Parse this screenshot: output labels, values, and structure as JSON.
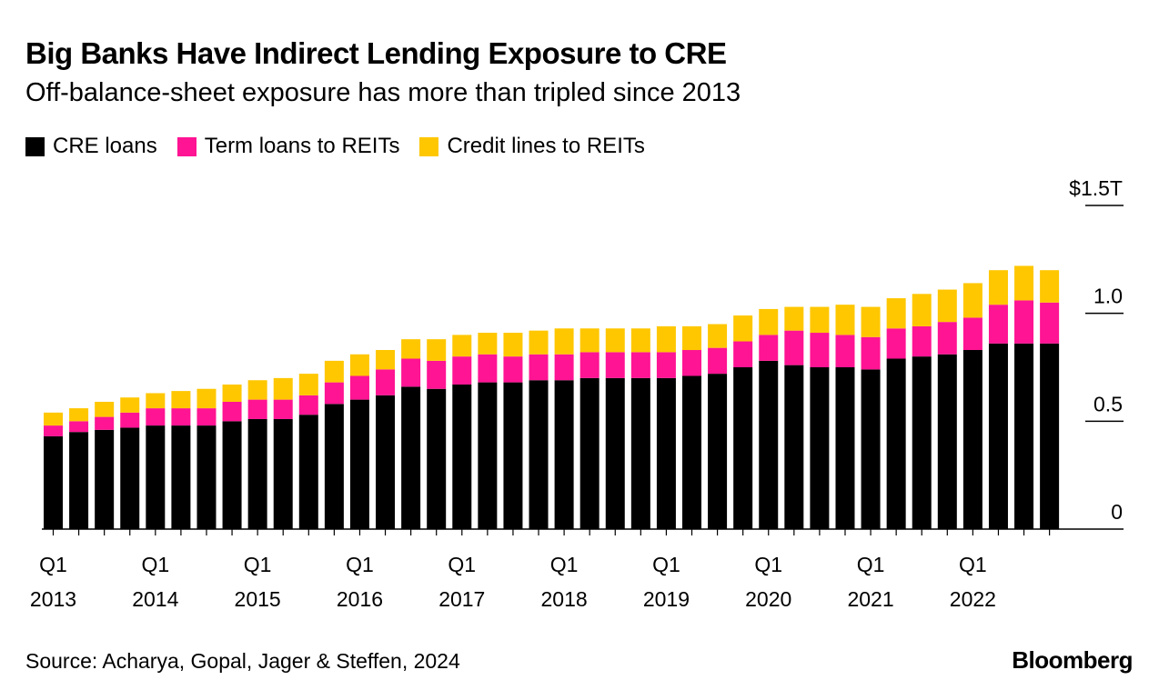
{
  "header": {
    "title": "Big Banks Have Indirect Lending Exposure to CRE",
    "subtitle": "Off-balance-sheet exposure has more than tripled since 2013"
  },
  "legend": [
    {
      "label": "CRE loans",
      "color": "#000000"
    },
    {
      "label": "Term loans to REITs",
      "color": "#ff1493"
    },
    {
      "label": "Credit lines to REITs",
      "color": "#ffc700"
    }
  ],
  "footer": {
    "source": "Source: Acharya, Gopal, Jager & Steffen, 2024",
    "brand": "Bloomberg"
  },
  "chart_data": {
    "type": "bar",
    "stacked": true,
    "title": "Big Banks Have Indirect Lending Exposure to CRE",
    "subtitle": "Off-balance-sheet exposure has more than tripled since 2013",
    "xlabel": "",
    "ylabel": "",
    "ylim": [
      0,
      1.5
    ],
    "y_ticks": [
      {
        "value": 0,
        "label": "0"
      },
      {
        "value": 0.5,
        "label": "0.5"
      },
      {
        "value": 1.0,
        "label": "1.0"
      },
      {
        "value": 1.5,
        "label": "$1.5T"
      }
    ],
    "x_tick_labels": [
      {
        "index": 0,
        "quarter": "Q1",
        "year": "2013"
      },
      {
        "index": 4,
        "quarter": "Q1",
        "year": "2014"
      },
      {
        "index": 8,
        "quarter": "Q1",
        "year": "2015"
      },
      {
        "index": 12,
        "quarter": "Q1",
        "year": "2016"
      },
      {
        "index": 16,
        "quarter": "Q1",
        "year": "2017"
      },
      {
        "index": 20,
        "quarter": "Q1",
        "year": "2018"
      },
      {
        "index": 24,
        "quarter": "Q1",
        "year": "2019"
      },
      {
        "index": 28,
        "quarter": "Q1",
        "year": "2020"
      },
      {
        "index": 32,
        "quarter": "Q1",
        "year": "2021"
      },
      {
        "index": 36,
        "quarter": "Q1",
        "year": "2022"
      }
    ],
    "categories": [
      "Q1 2013",
      "Q2 2013",
      "Q3 2013",
      "Q4 2013",
      "Q1 2014",
      "Q2 2014",
      "Q3 2014",
      "Q4 2014",
      "Q1 2015",
      "Q2 2015",
      "Q3 2015",
      "Q4 2015",
      "Q1 2016",
      "Q2 2016",
      "Q3 2016",
      "Q4 2016",
      "Q1 2017",
      "Q2 2017",
      "Q3 2017",
      "Q4 2017",
      "Q1 2018",
      "Q2 2018",
      "Q3 2018",
      "Q4 2018",
      "Q1 2019",
      "Q2 2019",
      "Q3 2019",
      "Q4 2019",
      "Q1 2020",
      "Q2 2020",
      "Q3 2020",
      "Q4 2020",
      "Q1 2021",
      "Q2 2021",
      "Q3 2021",
      "Q4 2021",
      "Q1 2022",
      "Q2 2022",
      "Q3 2022",
      "Q4 2022"
    ],
    "series": [
      {
        "name": "CRE loans",
        "color": "#000000",
        "values": [
          0.43,
          0.45,
          0.46,
          0.47,
          0.48,
          0.48,
          0.48,
          0.5,
          0.51,
          0.51,
          0.53,
          0.58,
          0.6,
          0.62,
          0.66,
          0.65,
          0.67,
          0.68,
          0.68,
          0.69,
          0.69,
          0.7,
          0.7,
          0.7,
          0.7,
          0.71,
          0.72,
          0.75,
          0.78,
          0.76,
          0.75,
          0.75,
          0.74,
          0.79,
          0.8,
          0.81,
          0.83,
          0.86,
          0.86,
          0.86
        ]
      },
      {
        "name": "Term loans to REITs",
        "color": "#ff1493",
        "values": [
          0.05,
          0.05,
          0.06,
          0.07,
          0.08,
          0.08,
          0.08,
          0.09,
          0.09,
          0.09,
          0.09,
          0.1,
          0.11,
          0.12,
          0.13,
          0.13,
          0.13,
          0.13,
          0.12,
          0.12,
          0.12,
          0.12,
          0.12,
          0.12,
          0.12,
          0.12,
          0.12,
          0.12,
          0.12,
          0.16,
          0.16,
          0.15,
          0.15,
          0.14,
          0.14,
          0.15,
          0.15,
          0.18,
          0.2,
          0.19
        ]
      },
      {
        "name": "Credit lines to REITs",
        "color": "#ffc700",
        "values": [
          0.06,
          0.06,
          0.07,
          0.07,
          0.07,
          0.08,
          0.09,
          0.08,
          0.09,
          0.1,
          0.1,
          0.1,
          0.1,
          0.09,
          0.09,
          0.1,
          0.1,
          0.1,
          0.11,
          0.11,
          0.12,
          0.11,
          0.11,
          0.11,
          0.12,
          0.11,
          0.11,
          0.12,
          0.12,
          0.11,
          0.12,
          0.14,
          0.14,
          0.14,
          0.15,
          0.15,
          0.16,
          0.16,
          0.16,
          0.15
        ]
      }
    ]
  }
}
